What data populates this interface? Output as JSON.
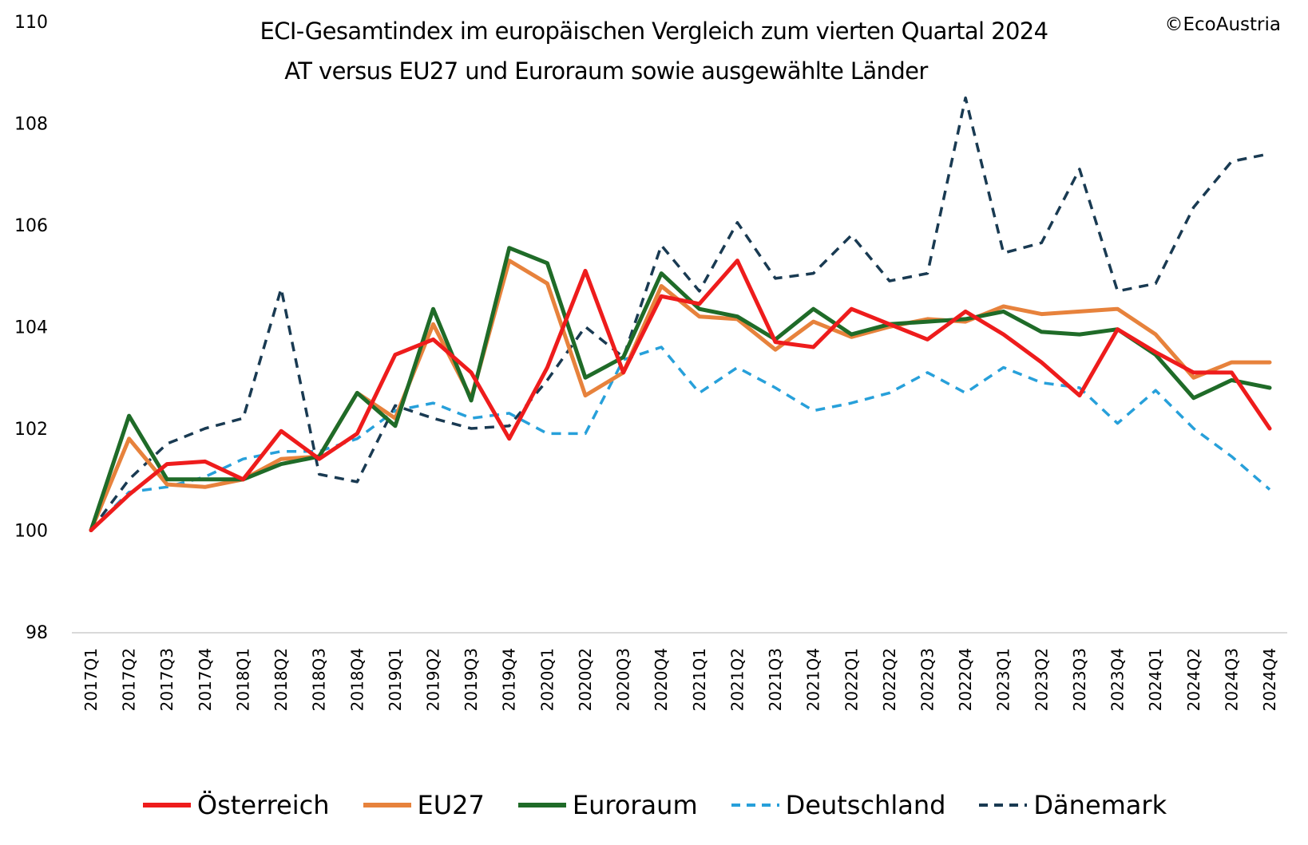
{
  "chart_data": {
    "type": "line",
    "title": "ECI-Gesamtindex im europäischen Vergleich zum vierten Quartal 2024",
    "subtitle": "AT versus EU27 und Euroraum sowie ausgewählte Länder",
    "watermark": "©EcoAustria",
    "xlabel": "",
    "ylabel": "",
    "ylim": [
      98,
      110
    ],
    "yticks": [
      "98",
      "100",
      "102",
      "104",
      "106",
      "108",
      "110"
    ],
    "grid": false,
    "legend_position": "bottom",
    "categories": [
      "2017Q1",
      "2017Q2",
      "2017Q3",
      "2017Q4",
      "2018Q1",
      "2018Q2",
      "2018Q3",
      "2018Q4",
      "2019Q1",
      "2019Q2",
      "2019Q3",
      "2019Q4",
      "2020Q1",
      "2020Q2",
      "2020Q3",
      "2020Q4",
      "2021Q1",
      "2021Q2",
      "2021Q3",
      "2021Q4",
      "2022Q1",
      "2022Q2",
      "2022Q3",
      "2022Q4",
      "2023Q1",
      "2023Q2",
      "2023Q3",
      "2023Q4",
      "2024Q1",
      "2024Q2",
      "2024Q3",
      "2024Q4"
    ],
    "series": [
      {
        "name": "Österreich",
        "color": "#ee1c1c",
        "style": "solid",
        "values": [
          100.0,
          100.7,
          101.3,
          101.35,
          101.0,
          101.95,
          101.4,
          101.9,
          103.45,
          103.75,
          103.1,
          101.8,
          103.2,
          105.1,
          103.1,
          104.6,
          104.45,
          105.3,
          103.7,
          103.6,
          104.35,
          104.05,
          103.75,
          104.3,
          103.85,
          103.3,
          102.65,
          103.95,
          103.5,
          103.1,
          103.1,
          102.0
        ]
      },
      {
        "name": "EU27",
        "color": "#e7823c",
        "style": "solid",
        "values": [
          100.0,
          101.8,
          100.9,
          100.85,
          101.0,
          101.4,
          101.45,
          102.7,
          102.2,
          104.05,
          102.6,
          105.3,
          104.85,
          102.65,
          103.1,
          104.8,
          104.2,
          104.15,
          103.55,
          104.1,
          103.8,
          104.0,
          104.15,
          104.1,
          104.4,
          104.25,
          104.3,
          104.35,
          103.85,
          103.0,
          103.3,
          103.3
        ]
      },
      {
        "name": "Euroraum",
        "color": "#1f6b28",
        "style": "solid",
        "values": [
          100.0,
          102.25,
          101.0,
          101.0,
          101.0,
          101.3,
          101.45,
          102.7,
          102.05,
          104.35,
          102.55,
          105.55,
          105.25,
          103.0,
          103.4,
          105.05,
          104.35,
          104.2,
          103.75,
          104.35,
          103.85,
          104.05,
          104.1,
          104.15,
          104.3,
          103.9,
          103.85,
          103.95,
          103.45,
          102.6,
          102.95,
          102.8
        ]
      },
      {
        "name": "Deutschland",
        "color": "#27a0da",
        "style": "dashed",
        "values": [
          100.0,
          100.75,
          100.85,
          101.05,
          101.4,
          101.55,
          101.55,
          101.8,
          102.35,
          102.5,
          102.2,
          102.3,
          101.9,
          101.9,
          103.35,
          103.6,
          102.7,
          103.2,
          102.8,
          102.35,
          102.5,
          102.7,
          103.1,
          102.7,
          103.2,
          102.9,
          102.8,
          102.1,
          102.75,
          102.0,
          101.45,
          100.8
        ]
      },
      {
        "name": "Dänemark",
        "color": "#193a52",
        "style": "dashed",
        "values": [
          100.0,
          101.0,
          101.7,
          102.0,
          102.2,
          104.75,
          101.1,
          100.95,
          102.45,
          102.2,
          102.0,
          102.05,
          102.95,
          104.0,
          103.4,
          105.6,
          104.7,
          106.05,
          104.95,
          105.05,
          105.8,
          104.9,
          105.05,
          108.5,
          105.45,
          105.65,
          107.1,
          104.7,
          104.85,
          106.35,
          107.25,
          107.4
        ]
      }
    ]
  }
}
